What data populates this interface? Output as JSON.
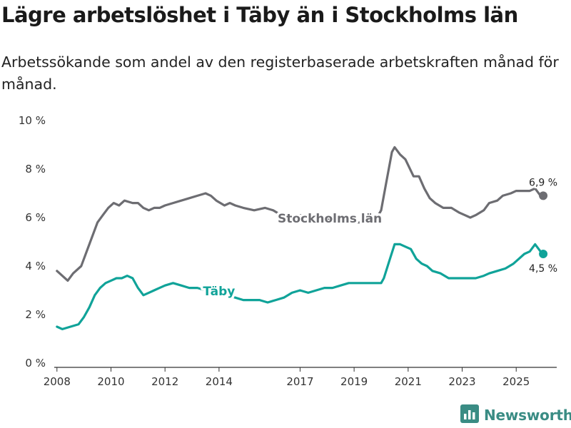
{
  "title": "Lägre arbetslöshet i Täby än i Stockholms län",
  "subtitle": "Arbetssökande som andel av den registerbaserade arbetskraften månad för månad.",
  "brand": {
    "name": "Newsworthy",
    "icon": "newsworthy-bar-chart-icon",
    "color": "#3a8c84"
  },
  "colors": {
    "stockholm": "#6d6d72",
    "taby": "#10a399",
    "axis": "#333333"
  },
  "chart_data": {
    "type": "line",
    "title": "Lägre arbetslöshet i Täby än i Stockholms län",
    "xlabel": "",
    "ylabel": "",
    "xlim": [
      2007.9,
      2026.5
    ],
    "ylim": [
      0,
      10
    ],
    "grid": false,
    "y_ticks": [
      {
        "value": 0,
        "label": "0 %"
      },
      {
        "value": 2,
        "label": "2 %"
      },
      {
        "value": 4,
        "label": "4 %"
      },
      {
        "value": 6,
        "label": "6 %"
      },
      {
        "value": 8,
        "label": "8 %"
      },
      {
        "value": 10,
        "label": "10 %"
      }
    ],
    "x_ticks": [
      {
        "value": 2008,
        "label": "2008"
      },
      {
        "value": 2010,
        "label": "2010"
      },
      {
        "value": 2012,
        "label": "2012"
      },
      {
        "value": 2014,
        "label": "2014"
      },
      {
        "value": 2017,
        "label": "2017"
      },
      {
        "value": 2019,
        "label": "2019"
      },
      {
        "value": 2021,
        "label": "2021"
      },
      {
        "value": 2023,
        "label": "2023"
      },
      {
        "value": 2025,
        "label": "2025"
      }
    ],
    "series": [
      {
        "name": "Stockholms län",
        "color": "#6d6d72",
        "label": "Stockholms län",
        "end_label": "6,9 %",
        "x": [
          2008.0,
          2008.4,
          2008.6,
          2008.9,
          2009.1,
          2009.3,
          2009.5,
          2009.7,
          2009.9,
          2010.1,
          2010.3,
          2010.5,
          2010.8,
          2011.0,
          2011.2,
          2011.4,
          2011.6,
          2011.8,
          2012.0,
          2012.3,
          2012.6,
          2012.9,
          2013.2,
          2013.5,
          2013.7,
          2013.9,
          2014.2,
          2014.4,
          2014.6,
          2014.9,
          2015.3,
          2015.7,
          2016.0,
          2016.3,
          2016.6,
          2016.9,
          2017.2,
          2017.5,
          2017.8,
          2018.2,
          2018.6,
          2019.0,
          2019.3,
          2019.5,
          2019.8,
          2020.0,
          2020.2,
          2020.4,
          2020.5,
          2020.7,
          2020.9,
          2021.2,
          2021.4,
          2021.6,
          2021.8,
          2022.0,
          2022.3,
          2022.6,
          2022.9,
          2023.1,
          2023.3,
          2023.5,
          2023.8,
          2024.0,
          2024.3,
          2024.5,
          2024.8,
          2025.0,
          2025.3,
          2025.5,
          2025.7,
          2025.9,
          2026.0
        ],
        "values": [
          3.8,
          3.4,
          3.7,
          4.0,
          4.6,
          5.2,
          5.8,
          6.1,
          6.4,
          6.6,
          6.5,
          6.7,
          6.6,
          6.6,
          6.4,
          6.3,
          6.4,
          6.4,
          6.5,
          6.6,
          6.7,
          6.8,
          6.9,
          7.0,
          6.9,
          6.7,
          6.5,
          6.6,
          6.5,
          6.4,
          6.3,
          6.4,
          6.3,
          6.1,
          6.1,
          6.1,
          6.1,
          6.0,
          6.0,
          5.9,
          5.9,
          5.8,
          5.8,
          5.8,
          5.9,
          6.3,
          7.5,
          8.7,
          8.9,
          8.6,
          8.4,
          7.7,
          7.7,
          7.2,
          6.8,
          6.6,
          6.4,
          6.4,
          6.2,
          6.1,
          6.0,
          6.1,
          6.3,
          6.6,
          6.7,
          6.9,
          7.0,
          7.1,
          7.1,
          7.1,
          7.2,
          6.9,
          6.9
        ]
      },
      {
        "name": "Täby",
        "color": "#10a399",
        "label": "Täby",
        "end_label": "4,5 %",
        "x": [
          2008.0,
          2008.2,
          2008.5,
          2008.8,
          2009.0,
          2009.2,
          2009.4,
          2009.6,
          2009.8,
          2010.0,
          2010.2,
          2010.4,
          2010.6,
          2010.8,
          2011.0,
          2011.2,
          2011.4,
          2011.6,
          2011.8,
          2012.0,
          2012.3,
          2012.6,
          2012.9,
          2013.2,
          2013.5,
          2013.8,
          2014.0,
          2014.3,
          2014.6,
          2014.9,
          2015.2,
          2015.5,
          2015.8,
          2016.1,
          2016.4,
          2016.7,
          2017.0,
          2017.3,
          2017.6,
          2017.9,
          2018.2,
          2018.5,
          2018.8,
          2019.1,
          2019.4,
          2019.7,
          2020.0,
          2020.1,
          2020.3,
          2020.5,
          2020.7,
          2020.9,
          2021.1,
          2021.3,
          2021.5,
          2021.7,
          2021.9,
          2022.2,
          2022.5,
          2022.8,
          2023.0,
          2023.2,
          2023.5,
          2023.8,
          2024.0,
          2024.3,
          2024.6,
          2024.9,
          2025.1,
          2025.3,
          2025.5,
          2025.7,
          2025.9,
          2026.0
        ],
        "values": [
          1.5,
          1.4,
          1.5,
          1.6,
          1.9,
          2.3,
          2.8,
          3.1,
          3.3,
          3.4,
          3.5,
          3.5,
          3.6,
          3.5,
          3.1,
          2.8,
          2.9,
          3.0,
          3.1,
          3.2,
          3.3,
          3.2,
          3.1,
          3.1,
          3.0,
          2.9,
          2.8,
          2.8,
          2.7,
          2.6,
          2.6,
          2.6,
          2.5,
          2.6,
          2.7,
          2.9,
          3.0,
          2.9,
          3.0,
          3.1,
          3.1,
          3.2,
          3.3,
          3.3,
          3.3,
          3.3,
          3.3,
          3.5,
          4.2,
          4.9,
          4.9,
          4.8,
          4.7,
          4.3,
          4.1,
          4.0,
          3.8,
          3.7,
          3.5,
          3.5,
          3.5,
          3.5,
          3.5,
          3.6,
          3.7,
          3.8,
          3.9,
          4.1,
          4.3,
          4.5,
          4.6,
          4.9,
          4.6,
          4.5
        ]
      }
    ]
  }
}
